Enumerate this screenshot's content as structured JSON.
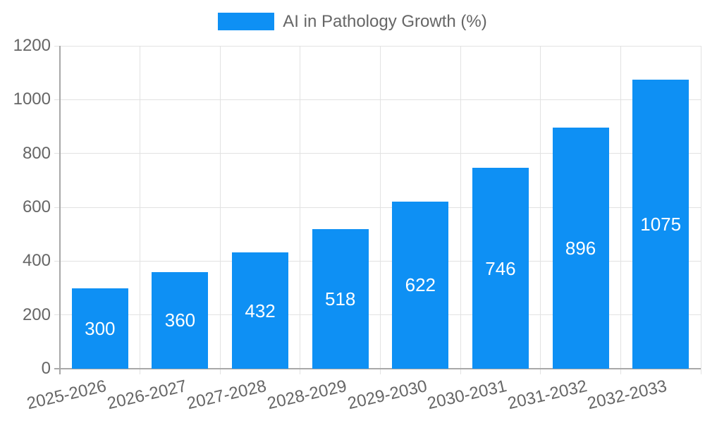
{
  "chart_data": {
    "type": "bar",
    "title": "",
    "legend": {
      "label": "AI in Pathology Growth (%)",
      "position": "top"
    },
    "categories": [
      "2025-2026",
      "2026-2027",
      "2027-2028",
      "2028-2029",
      "2029-2030",
      "2030-2031",
      "2031-2032",
      "2032-2033"
    ],
    "values": [
      300,
      360,
      432,
      518,
      622,
      746,
      896,
      1075
    ],
    "xlabel": "",
    "ylabel": "",
    "ylim": [
      0,
      1200
    ],
    "yticks": [
      0,
      200,
      400,
      600,
      800,
      1000,
      1200
    ],
    "grid": true,
    "value_labels_position": "inside-center",
    "x_tick_rotation_deg": 13
  },
  "colors": {
    "bar": "#0e90f4",
    "value_label": "#ffffff",
    "tick_text": "#666666",
    "legend_text": "#666666",
    "gridline": "#e2e2e2",
    "axis_line": "#a8a8a8",
    "background": "#ffffff"
  }
}
